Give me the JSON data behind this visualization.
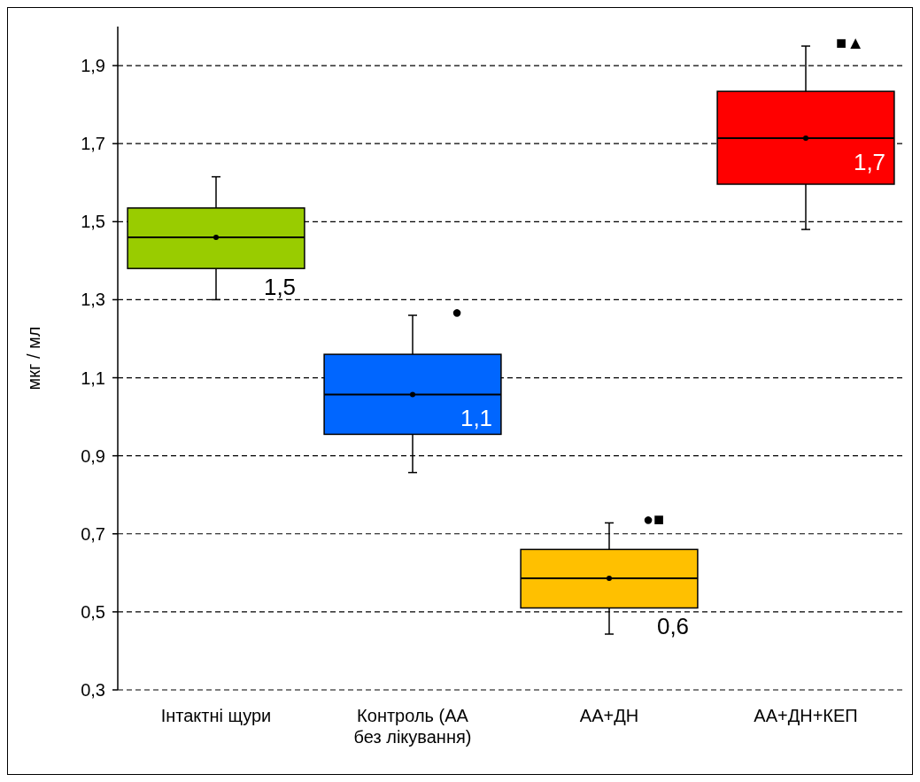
{
  "chart_data": {
    "type": "box",
    "ylabel": "мкг / мл",
    "categories": [
      "Інтактні щури",
      "Контроль (АА без лікування)",
      "АА+ДН",
      "АА+ДН+КЕП"
    ],
    "boxes": [
      {
        "low": 1.3,
        "q1": 1.38,
        "median": 1.46,
        "q3": 1.535,
        "high": 1.615,
        "mean": 1.46
      },
      {
        "low": 0.857,
        "q1": 0.955,
        "median": 1.057,
        "q3": 1.16,
        "high": 1.26,
        "mean": 1.057
      },
      {
        "low": 0.443,
        "q1": 0.51,
        "median": 0.586,
        "q3": 0.66,
        "high": 0.728,
        "mean": 0.586
      },
      {
        "low": 1.48,
        "q1": 1.596,
        "median": 1.714,
        "q3": 1.834,
        "high": 1.95,
        "mean": 1.714
      }
    ],
    "colors": [
      "#99cc00",
      "#0066ff",
      "#ffc000",
      "#ff0000"
    ],
    "ylim": [
      0.3,
      2.0
    ],
    "yticks": [
      {
        "value": 0.3,
        "label": "0,3"
      },
      {
        "value": 0.5,
        "label": "0,5"
      },
      {
        "value": 0.7,
        "label": "0,7"
      },
      {
        "value": 0.9,
        "label": "0,9"
      },
      {
        "value": 1.1,
        "label": "1,1"
      },
      {
        "value": 1.3,
        "label": "1,3"
      },
      {
        "value": 1.5,
        "label": "1,5"
      },
      {
        "value": 1.7,
        "label": "1,7"
      },
      {
        "value": 1.9,
        "label": "1,9"
      }
    ],
    "grid": "y",
    "line_style": "dashed",
    "annotations": [
      {
        "text": "1,5",
        "x": "Інтактні щури",
        "y": 1.46
      },
      {
        "text": "1,1",
        "x": "Контроль (АА без лікування)",
        "y": 1.057
      },
      {
        "text": "0,6",
        "x": "АА+ДН",
        "y": 0.586
      },
      {
        "text": "1,7",
        "x": "АА+ДН+КЕП",
        "y": 1.714
      },
      {
        "text": "●",
        "x": "Контроль (АА без лікування)",
        "y": 1.26
      },
      {
        "text": "●■",
        "x": "АА+ДН",
        "y": 0.728
      },
      {
        "text": "■▲",
        "x": "АА+ДН+КЕП",
        "y": 1.95
      }
    ]
  }
}
